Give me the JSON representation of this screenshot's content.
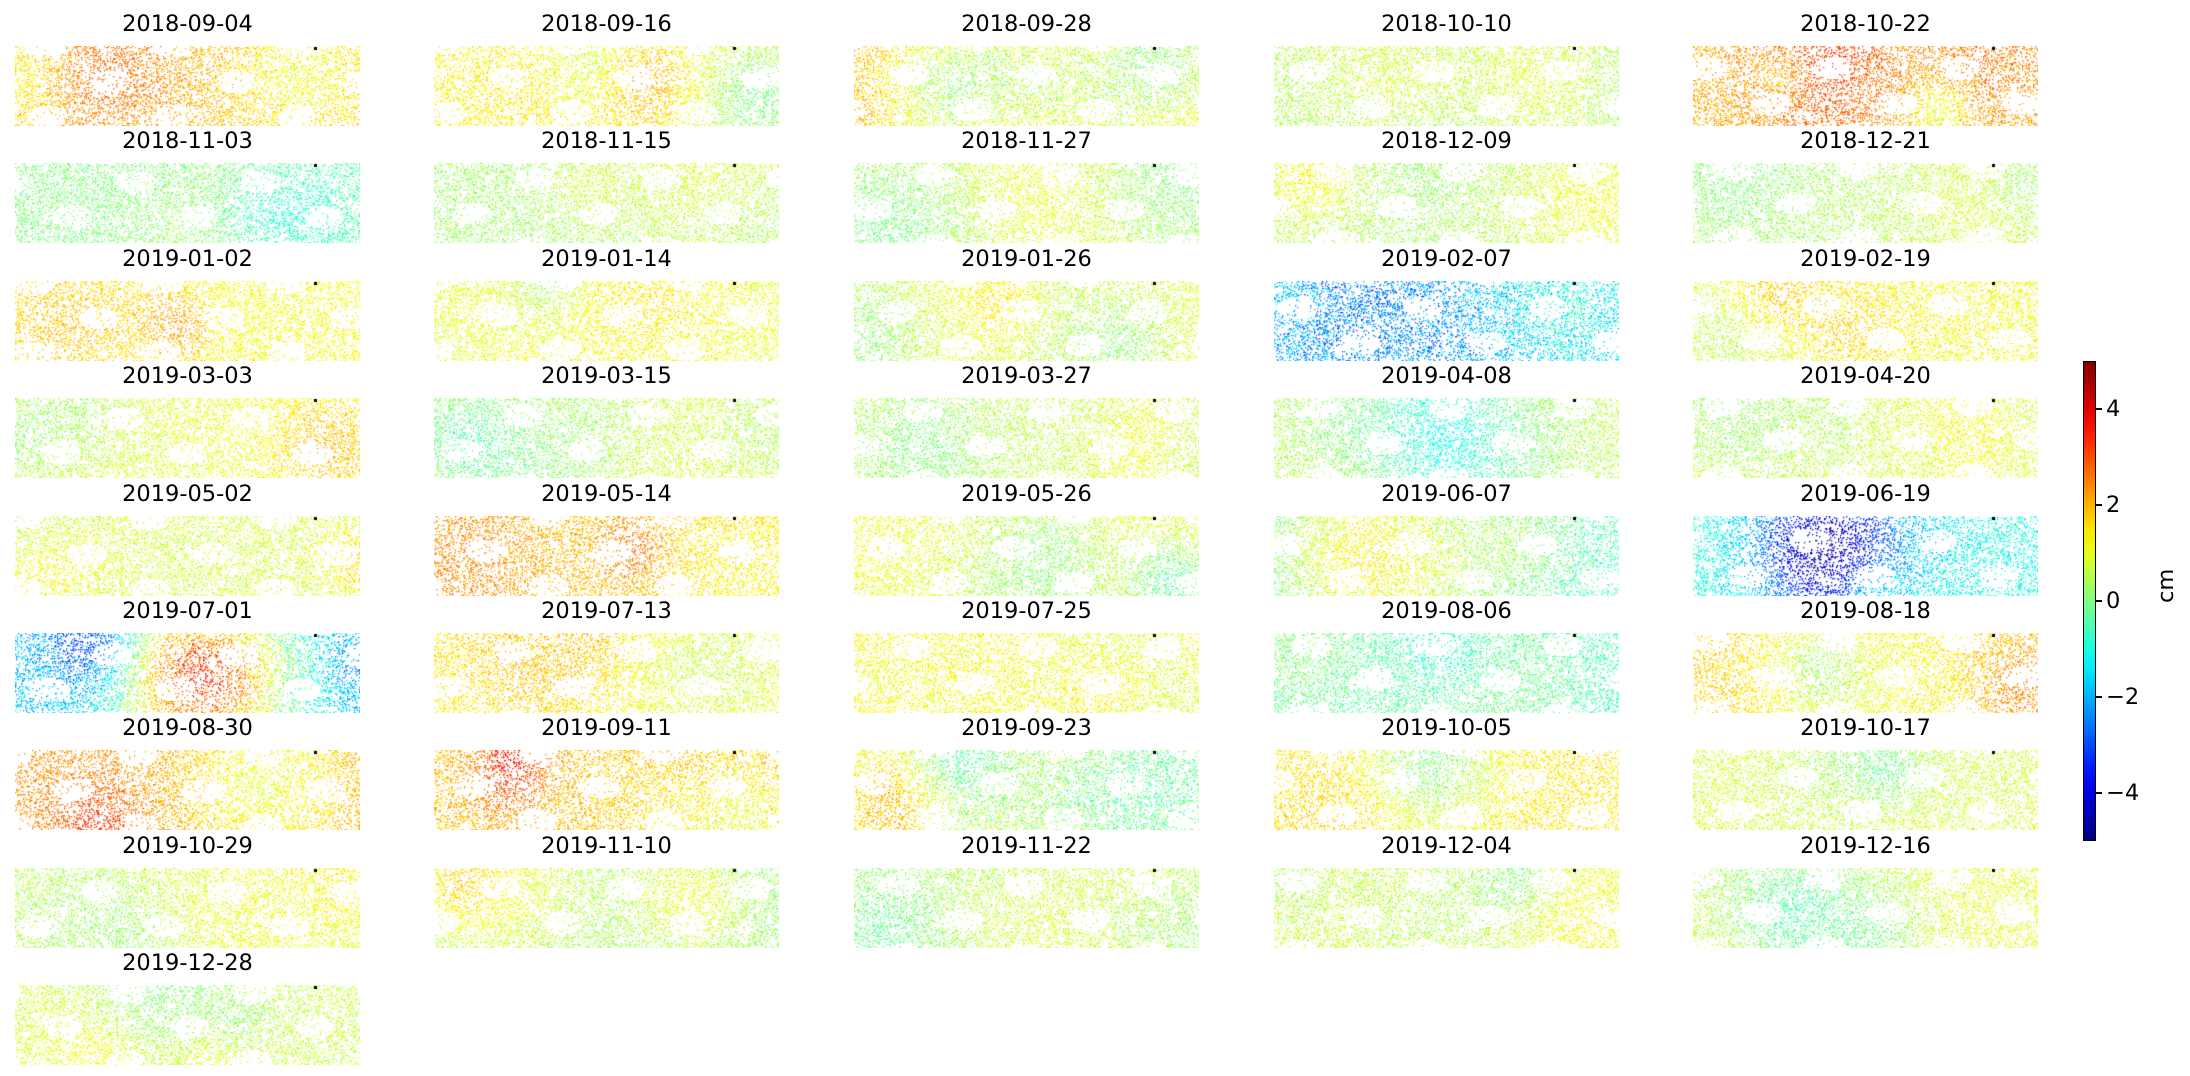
{
  "chart_data": {
    "type": "heatmap",
    "description_panels": "small multiples of a displacement raster, one panel per acquisition date",
    "panels": [
      {
        "title": "2018-09-04",
        "mean_cm": 2.0,
        "spread_cm": 1.2
      },
      {
        "title": "2018-09-16",
        "mean_cm": 1.3,
        "spread_cm": 1.0
      },
      {
        "title": "2018-09-28",
        "mean_cm": 2.2,
        "spread_cm": 1.4
      },
      {
        "title": "2018-10-10",
        "mean_cm": 0.4,
        "spread_cm": 1.0
      },
      {
        "title": "2018-10-22",
        "mean_cm": 2.0,
        "spread_cm": 1.3
      },
      {
        "title": "2018-11-03",
        "mean_cm": 0.0,
        "spread_cm": 0.8
      },
      {
        "title": "2018-11-15",
        "mean_cm": 0.3,
        "spread_cm": 0.8
      },
      {
        "title": "2018-11-27",
        "mean_cm": 0.6,
        "spread_cm": 0.8
      },
      {
        "title": "2018-12-09",
        "mean_cm": 0.4,
        "spread_cm": 0.9
      },
      {
        "title": "2018-12-21",
        "mean_cm": 0.5,
        "spread_cm": 0.7
      },
      {
        "title": "2019-01-02",
        "mean_cm": 1.2,
        "spread_cm": 0.8
      },
      {
        "title": "2019-01-14",
        "mean_cm": 1.0,
        "spread_cm": 0.8
      },
      {
        "title": "2019-01-26",
        "mean_cm": 1.0,
        "spread_cm": 0.8
      },
      {
        "title": "2019-02-07",
        "mean_cm": -2.0,
        "spread_cm": 2.4
      },
      {
        "title": "2019-02-19",
        "mean_cm": 1.2,
        "spread_cm": 1.1
      },
      {
        "title": "2019-03-03",
        "mean_cm": 1.0,
        "spread_cm": 0.8
      },
      {
        "title": "2019-03-15",
        "mean_cm": 0.9,
        "spread_cm": 0.9
      },
      {
        "title": "2019-03-27",
        "mean_cm": 0.6,
        "spread_cm": 0.8
      },
      {
        "title": "2019-04-08",
        "mean_cm": 0.7,
        "spread_cm": 0.8
      },
      {
        "title": "2019-04-20",
        "mean_cm": 0.8,
        "spread_cm": 0.9
      },
      {
        "title": "2019-05-02",
        "mean_cm": 0.8,
        "spread_cm": 1.1
      },
      {
        "title": "2019-05-14",
        "mean_cm": 1.8,
        "spread_cm": 1.1
      },
      {
        "title": "2019-05-26",
        "mean_cm": 1.1,
        "spread_cm": 0.9
      },
      {
        "title": "2019-06-07",
        "mean_cm": -0.2,
        "spread_cm": 1.3
      },
      {
        "title": "2019-06-19",
        "mean_cm": -1.0,
        "spread_cm": 1.8
      },
      {
        "title": "2019-07-01",
        "mean_cm": -1.8,
        "spread_cm": 2.2
      },
      {
        "title": "2019-07-13",
        "mean_cm": 1.4,
        "spread_cm": 1.0
      },
      {
        "title": "2019-07-25",
        "mean_cm": 1.2,
        "spread_cm": 1.0
      },
      {
        "title": "2019-08-06",
        "mean_cm": -0.7,
        "spread_cm": 1.0
      },
      {
        "title": "2019-08-18",
        "mean_cm": 1.7,
        "spread_cm": 1.0
      },
      {
        "title": "2019-08-30",
        "mean_cm": 2.3,
        "spread_cm": 1.0
      },
      {
        "title": "2019-09-11",
        "mean_cm": 1.9,
        "spread_cm": 1.3
      },
      {
        "title": "2019-09-23",
        "mean_cm": 0.6,
        "spread_cm": 1.5
      },
      {
        "title": "2019-10-05",
        "mean_cm": 1.5,
        "spread_cm": 1.0
      },
      {
        "title": "2019-10-17",
        "mean_cm": 0.8,
        "spread_cm": 0.9
      },
      {
        "title": "2019-10-29",
        "mean_cm": 0.8,
        "spread_cm": 0.9
      },
      {
        "title": "2019-11-10",
        "mean_cm": 0.2,
        "spread_cm": 0.8
      },
      {
        "title": "2019-11-22",
        "mean_cm": 0.3,
        "spread_cm": 0.8
      },
      {
        "title": "2019-12-04",
        "mean_cm": 0.8,
        "spread_cm": 0.9
      },
      {
        "title": "2019-12-16",
        "mean_cm": 1.0,
        "spread_cm": 0.9
      },
      {
        "title": "2019-12-28",
        "mean_cm": 0.7,
        "spread_cm": 0.9
      }
    ],
    "colorbar": {
      "label": "cm",
      "range": [
        -5,
        5
      ],
      "ticks": [
        4,
        2,
        0,
        -2,
        -4
      ],
      "tick_labels": [
        "4",
        "2",
        "0",
        "−2",
        "−4"
      ],
      "colormap": "jet"
    },
    "layout_columns": 5,
    "grid": false
  }
}
